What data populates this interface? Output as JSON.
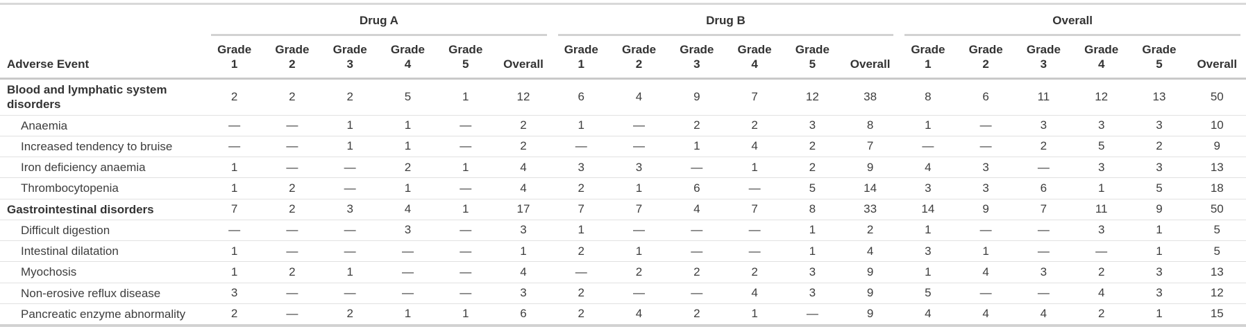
{
  "colors": {
    "background": "#ffffff",
    "header_text": "#333333",
    "body_text": "#3d3d3d",
    "thick_rule": "#d2d2d2",
    "thin_rule": "#e1e1e1"
  },
  "chart_data": {
    "type": "table",
    "row_header": "Adverse Event",
    "missing_symbol": "—",
    "groups": [
      {
        "label": "Drug A",
        "columns": [
          [
            "Grade",
            "1"
          ],
          [
            "Grade",
            "2"
          ],
          [
            "Grade",
            "3"
          ],
          [
            "Grade",
            "4"
          ],
          [
            "Grade",
            "5"
          ],
          [
            "Overall"
          ]
        ]
      },
      {
        "label": "Drug B",
        "columns": [
          [
            "Grade",
            "1"
          ],
          [
            "Grade",
            "2"
          ],
          [
            "Grade",
            "3"
          ],
          [
            "Grade",
            "4"
          ],
          [
            "Grade",
            "5"
          ],
          [
            "Overall"
          ]
        ]
      },
      {
        "label": "Overall",
        "columns": [
          [
            "Grade",
            "1"
          ],
          [
            "Grade",
            "2"
          ],
          [
            "Grade",
            "3"
          ],
          [
            "Grade",
            "4"
          ],
          [
            "Grade",
            "5"
          ],
          [
            "Overall"
          ]
        ]
      }
    ],
    "column_order": [
      "Drug A Grade 1",
      "Drug A Grade 2",
      "Drug A Grade 3",
      "Drug A Grade 4",
      "Drug A Grade 5",
      "Drug A Overall",
      "Drug B Grade 1",
      "Drug B Grade 2",
      "Drug B Grade 3",
      "Drug B Grade 4",
      "Drug B Grade 5",
      "Drug B Overall",
      "Overall Grade 1",
      "Overall Grade 2",
      "Overall Grade 3",
      "Overall Grade 4",
      "Overall Grade 5",
      "Overall Overall"
    ],
    "rows": [
      {
        "label": "Blood and lymphatic system disorders",
        "section": true,
        "values": [
          "2",
          "2",
          "2",
          "5",
          "1",
          "12",
          "6",
          "4",
          "9",
          "7",
          "12",
          "38",
          "8",
          "6",
          "11",
          "12",
          "13",
          "50"
        ]
      },
      {
        "label": "Anaemia",
        "section": false,
        "values": [
          "—",
          "—",
          "1",
          "1",
          "—",
          "2",
          "1",
          "—",
          "2",
          "2",
          "3",
          "8",
          "1",
          "—",
          "3",
          "3",
          "3",
          "10"
        ]
      },
      {
        "label": "Increased tendency to bruise",
        "section": false,
        "values": [
          "—",
          "—",
          "1",
          "1",
          "—",
          "2",
          "—",
          "—",
          "1",
          "4",
          "2",
          "7",
          "—",
          "—",
          "2",
          "5",
          "2",
          "9"
        ]
      },
      {
        "label": "Iron deficiency anaemia",
        "section": false,
        "values": [
          "1",
          "—",
          "—",
          "2",
          "1",
          "4",
          "3",
          "3",
          "—",
          "1",
          "2",
          "9",
          "4",
          "3",
          "—",
          "3",
          "3",
          "13"
        ]
      },
      {
        "label": "Thrombocytopenia",
        "section": false,
        "values": [
          "1",
          "2",
          "—",
          "1",
          "—",
          "4",
          "2",
          "1",
          "6",
          "—",
          "5",
          "14",
          "3",
          "3",
          "6",
          "1",
          "5",
          "18"
        ]
      },
      {
        "label": "Gastrointestinal disorders",
        "section": true,
        "values": [
          "7",
          "2",
          "3",
          "4",
          "1",
          "17",
          "7",
          "7",
          "4",
          "7",
          "8",
          "33",
          "14",
          "9",
          "7",
          "11",
          "9",
          "50"
        ]
      },
      {
        "label": "Difficult digestion",
        "section": false,
        "values": [
          "—",
          "—",
          "—",
          "3",
          "—",
          "3",
          "1",
          "—",
          "—",
          "—",
          "1",
          "2",
          "1",
          "—",
          "—",
          "3",
          "1",
          "5"
        ]
      },
      {
        "label": "Intestinal dilatation",
        "section": false,
        "values": [
          "1",
          "—",
          "—",
          "—",
          "—",
          "1",
          "2",
          "1",
          "—",
          "—",
          "1",
          "4",
          "3",
          "1",
          "—",
          "—",
          "1",
          "5"
        ]
      },
      {
        "label": "Myochosis",
        "section": false,
        "values": [
          "1",
          "2",
          "1",
          "—",
          "—",
          "4",
          "—",
          "2",
          "2",
          "2",
          "3",
          "9",
          "1",
          "4",
          "3",
          "2",
          "3",
          "13"
        ]
      },
      {
        "label": "Non-erosive reflux disease",
        "section": false,
        "values": [
          "3",
          "—",
          "—",
          "—",
          "—",
          "3",
          "2",
          "—",
          "—",
          "4",
          "3",
          "9",
          "5",
          "—",
          "—",
          "4",
          "3",
          "12"
        ]
      },
      {
        "label": "Pancreatic enzyme abnormality",
        "section": false,
        "values": [
          "2",
          "—",
          "2",
          "1",
          "1",
          "6",
          "2",
          "4",
          "2",
          "1",
          "—",
          "9",
          "4",
          "4",
          "4",
          "2",
          "1",
          "15"
        ]
      }
    ]
  }
}
